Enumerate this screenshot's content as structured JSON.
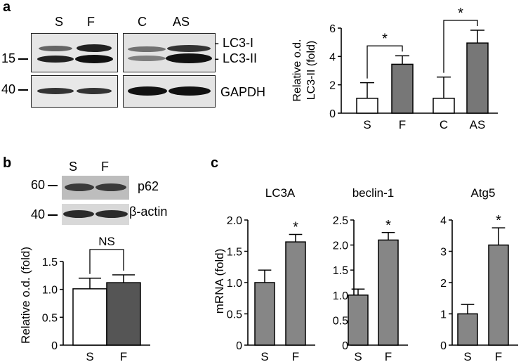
{
  "panels": {
    "a": {
      "letter": "a",
      "blot": {
        "lanes_left": [
          "S",
          "F"
        ],
        "lanes_right": [
          "C",
          "AS"
        ],
        "marker_15": "15",
        "marker_40": "40",
        "label_lc3i": "- LC3-I",
        "label_lc3ii": "- LC3-II",
        "label_gapdh": "GAPDH"
      }
    },
    "b": {
      "letter": "b",
      "blot": {
        "lanes": [
          "S",
          "F"
        ],
        "marker_60": "60",
        "marker_40": "40",
        "label_p62": "p62",
        "label_actin": "β-actin"
      }
    },
    "c": {
      "letter": "c"
    }
  },
  "colors": {
    "control_bar": "#ffffff",
    "treated_bar_a": "#777777",
    "treated_bar_b": "#555555",
    "treated_bar_c": "#868686",
    "axis": "#000000"
  },
  "chart_data": [
    {
      "id": "a-lc3ii",
      "type": "bar",
      "ylabel": "Relative o.d.\nLC3-II (fold)",
      "ylim": [
        0,
        6
      ],
      "yticks": [
        "0",
        "2",
        "4",
        "6"
      ],
      "groups": [
        {
          "categories": [
            "S",
            "F"
          ],
          "values": [
            1.05,
            3.45
          ],
          "errors": [
            1.1,
            0.6
          ],
          "fills": [
            "white",
            "gray"
          ],
          "significance": "*"
        },
        {
          "categories": [
            "C",
            "AS"
          ],
          "values": [
            1.05,
            4.95
          ],
          "errors": [
            1.5,
            0.9
          ],
          "fills": [
            "white",
            "gray"
          ],
          "significance": "*"
        }
      ]
    },
    {
      "id": "b-p62",
      "type": "bar",
      "ylabel": "Relative o.d. (fold)",
      "ylim": [
        0,
        1.5
      ],
      "yticks": [
        "0",
        "0.5",
        "1.0",
        "1.5"
      ],
      "categories": [
        "S",
        "F"
      ],
      "values": [
        1.01,
        1.12
      ],
      "errors": [
        0.19,
        0.14
      ],
      "fills": [
        "white",
        "dark"
      ],
      "significance": "NS"
    },
    {
      "id": "c-lc3a",
      "type": "bar",
      "title": "LC3A",
      "ylabel": "mRNA (fold)",
      "ylim": [
        0,
        2.0
      ],
      "yticks": [
        "0",
        "0.5",
        "1.0",
        "1.5",
        "2.0"
      ],
      "categories": [
        "S",
        "F"
      ],
      "values": [
        1.0,
        1.65
      ],
      "errors": [
        0.2,
        0.12
      ],
      "significance": "*"
    },
    {
      "id": "c-beclin1",
      "type": "bar",
      "title": "beclin-1",
      "ylim": [
        0,
        2.5
      ],
      "yticks": [
        "0",
        "0.5",
        "1.0",
        "1.5",
        "2.0",
        "2.5"
      ],
      "categories": [
        "S",
        "F"
      ],
      "values": [
        1.0,
        2.1
      ],
      "errors": [
        0.12,
        0.15
      ],
      "significance": "*"
    },
    {
      "id": "c-atg5",
      "type": "bar",
      "title": "Atg5",
      "ylim": [
        0,
        4
      ],
      "yticks": [
        "0",
        "1",
        "2",
        "3",
        "4"
      ],
      "categories": [
        "S",
        "F"
      ],
      "values": [
        1.0,
        3.2
      ],
      "errors": [
        0.3,
        0.55
      ],
      "significance": "*"
    }
  ]
}
